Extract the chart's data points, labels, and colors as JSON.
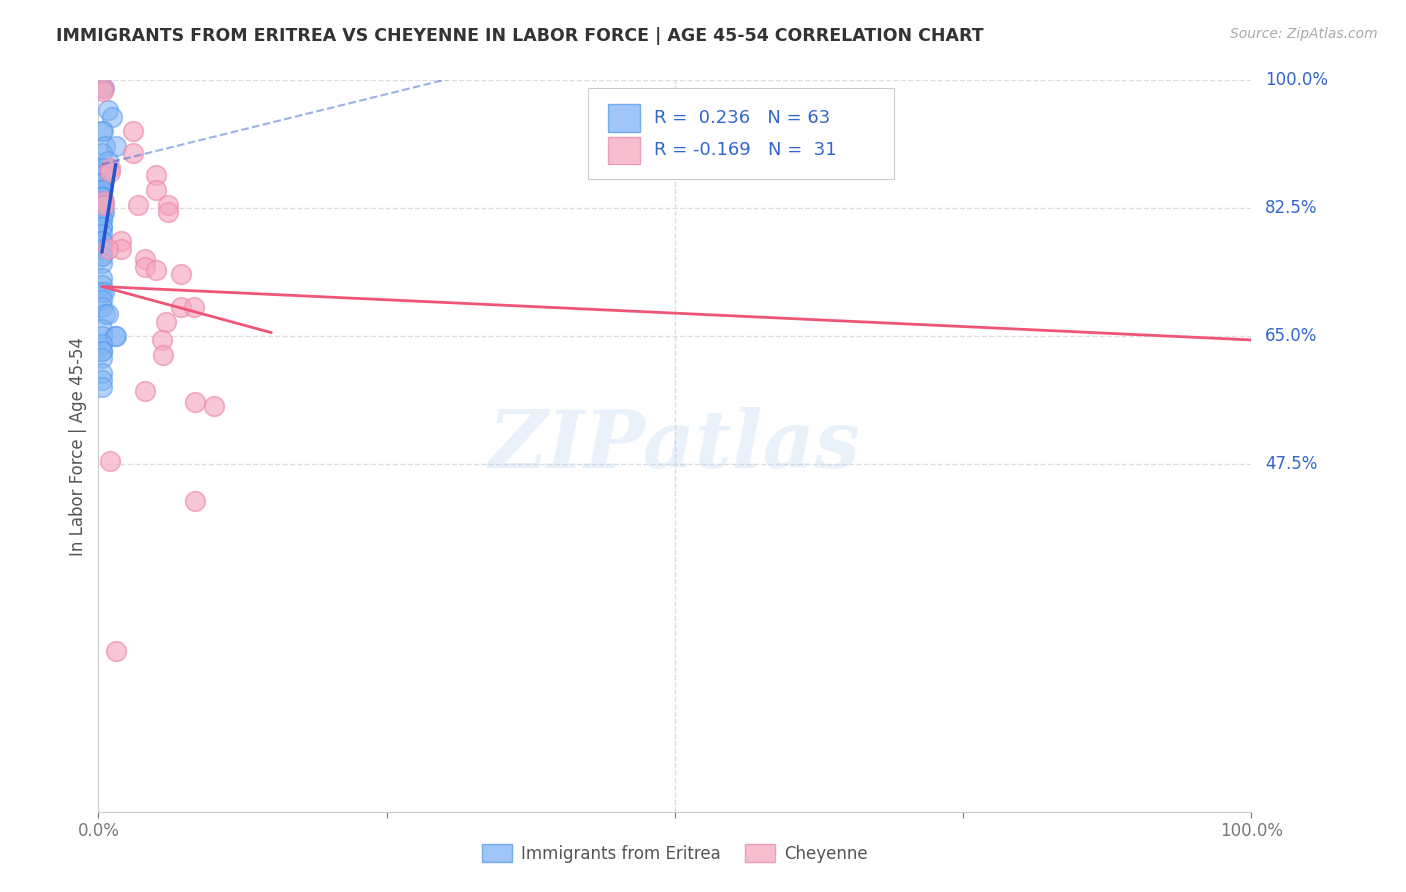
{
  "title": "IMMIGRANTS FROM ERITREA VS CHEYENNE IN LABOR FORCE | AGE 45-54 CORRELATION CHART",
  "source": "Source: ZipAtlas.com",
  "ylabel": "In Labor Force | Age 45-54",
  "xlim": [
    0.0,
    1.0
  ],
  "ylim": [
    0.0,
    1.0
  ],
  "ytick_labels": [
    "100.0%",
    "82.5%",
    "65.0%",
    "47.5%"
  ],
  "ytick_vals": [
    1.0,
    0.825,
    0.65,
    0.475
  ],
  "xtick_positions": [
    0.0,
    0.25,
    0.5,
    0.75,
    1.0
  ],
  "xtick_labels": [
    "0.0%",
    "",
    "",
    "",
    "100.0%"
  ],
  "grid_color": "#dddddd",
  "watermark": "ZIPatlas",
  "blue_color": "#7fb3f5",
  "pink_color": "#f5a8c0",
  "blue_edge_color": "#5599ee",
  "pink_edge_color": "#ee88aa",
  "blue_line_color": "#2255cc",
  "pink_line_color": "#ee5577",
  "title_color": "#333333",
  "axis_label_color": "#555555",
  "right_label_color": "#3366cc",
  "source_color": "#aaaaaa",
  "legend_text_color": "#3366cc",
  "scatter_blue": [
    [
      0.003,
      0.99
    ],
    [
      0.005,
      0.99
    ],
    [
      0.008,
      0.96
    ],
    [
      0.012,
      0.95
    ],
    [
      0.003,
      0.93
    ],
    [
      0.004,
      0.93
    ],
    [
      0.006,
      0.91
    ],
    [
      0.015,
      0.91
    ],
    [
      0.003,
      0.9
    ],
    [
      0.008,
      0.89
    ],
    [
      0.003,
      0.88
    ],
    [
      0.004,
      0.88
    ],
    [
      0.005,
      0.87
    ],
    [
      0.003,
      0.87
    ],
    [
      0.003,
      0.86
    ],
    [
      0.003,
      0.86
    ],
    [
      0.003,
      0.86
    ],
    [
      0.003,
      0.86
    ],
    [
      0.003,
      0.85
    ],
    [
      0.003,
      0.85
    ],
    [
      0.003,
      0.85
    ],
    [
      0.003,
      0.84
    ],
    [
      0.003,
      0.84
    ],
    [
      0.003,
      0.84
    ],
    [
      0.003,
      0.84
    ],
    [
      0.003,
      0.83
    ],
    [
      0.003,
      0.83
    ],
    [
      0.003,
      0.83
    ],
    [
      0.003,
      0.83
    ],
    [
      0.004,
      0.83
    ],
    [
      0.004,
      0.82
    ],
    [
      0.005,
      0.82
    ],
    [
      0.003,
      0.81
    ],
    [
      0.003,
      0.81
    ],
    [
      0.003,
      0.8
    ],
    [
      0.003,
      0.8
    ],
    [
      0.003,
      0.79
    ],
    [
      0.003,
      0.78
    ],
    [
      0.003,
      0.78
    ],
    [
      0.003,
      0.77
    ],
    [
      0.003,
      0.77
    ],
    [
      0.003,
      0.76
    ],
    [
      0.003,
      0.76
    ],
    [
      0.003,
      0.75
    ],
    [
      0.003,
      0.73
    ],
    [
      0.003,
      0.72
    ],
    [
      0.003,
      0.71
    ],
    [
      0.005,
      0.71
    ],
    [
      0.003,
      0.7
    ],
    [
      0.003,
      0.69
    ],
    [
      0.006,
      0.68
    ],
    [
      0.008,
      0.68
    ],
    [
      0.003,
      0.66
    ],
    [
      0.003,
      0.65
    ],
    [
      0.014,
      0.65
    ],
    [
      0.015,
      0.65
    ],
    [
      0.003,
      0.64
    ],
    [
      0.003,
      0.63
    ],
    [
      0.003,
      0.63
    ],
    [
      0.003,
      0.62
    ],
    [
      0.003,
      0.6
    ],
    [
      0.003,
      0.59
    ],
    [
      0.003,
      0.58
    ]
  ],
  "scatter_pink": [
    [
      0.004,
      0.99
    ],
    [
      0.004,
      0.985
    ],
    [
      0.03,
      0.93
    ],
    [
      0.03,
      0.9
    ],
    [
      0.01,
      0.88
    ],
    [
      0.01,
      0.875
    ],
    [
      0.05,
      0.87
    ],
    [
      0.05,
      0.85
    ],
    [
      0.005,
      0.835
    ],
    [
      0.005,
      0.83
    ],
    [
      0.06,
      0.83
    ],
    [
      0.06,
      0.82
    ],
    [
      0.02,
      0.78
    ],
    [
      0.02,
      0.77
    ],
    [
      0.034,
      0.83
    ],
    [
      0.04,
      0.755
    ],
    [
      0.04,
      0.745
    ],
    [
      0.05,
      0.74
    ],
    [
      0.008,
      0.77
    ],
    [
      0.072,
      0.735
    ],
    [
      0.059,
      0.67
    ],
    [
      0.055,
      0.645
    ],
    [
      0.056,
      0.625
    ],
    [
      0.072,
      0.69
    ],
    [
      0.083,
      0.69
    ],
    [
      0.01,
      0.48
    ],
    [
      0.015,
      0.22
    ],
    [
      0.1,
      0.555
    ],
    [
      0.04,
      0.575
    ],
    [
      0.084,
      0.56
    ],
    [
      0.084,
      0.425
    ]
  ],
  "blue_trendline_solid": [
    [
      0.003,
      0.765
    ],
    [
      0.015,
      0.885
    ]
  ],
  "blue_trendline_dashed": [
    [
      0.003,
      0.885
    ],
    [
      0.35,
      1.02
    ]
  ],
  "pink_trendline": [
    [
      0.003,
      0.718
    ],
    [
      0.15,
      0.655
    ]
  ]
}
